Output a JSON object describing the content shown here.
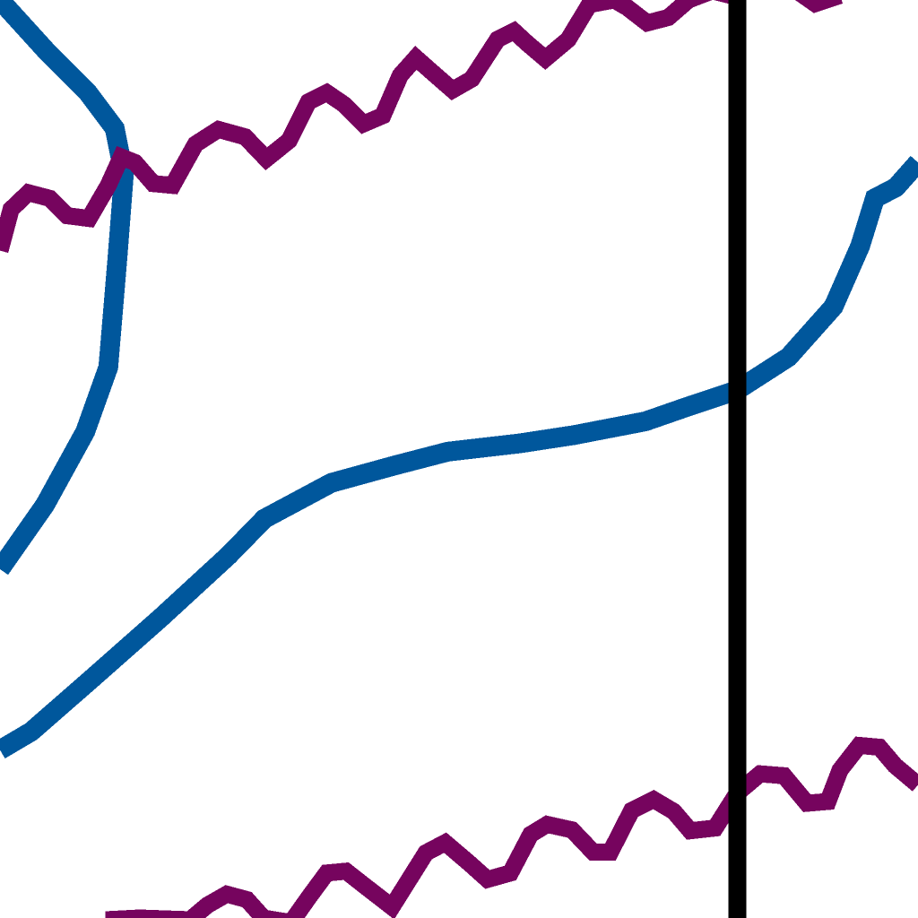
{
  "chart_data": {
    "type": "line",
    "title": "",
    "xlabel": "",
    "ylabel": "",
    "xlim": [
      0,
      100
    ],
    "ylim": [
      0,
      100
    ],
    "grid": false,
    "legend": "none",
    "colors": {
      "blue": "#00579c",
      "purple": "#76045e",
      "marker_line": "#000000",
      "background": "#ffffff"
    },
    "vertical_marker": {
      "x": 80.3
    },
    "series": [
      {
        "color": "#00579c",
        "x": [
          0,
          5,
          9.5,
          12.5,
          13.5,
          12.8,
          11.8,
          9.3,
          4.9,
          0
        ],
        "y": [
          100,
          94.5,
          90,
          86,
          81,
          72,
          60,
          53,
          45,
          38
        ]
      },
      {
        "color": "#00579c",
        "x": [
          0,
          3.4,
          9.8,
          17.5,
          24.9,
          28.8,
          36.1,
          43,
          48.8,
          56.6,
          62.5,
          70.3,
          75.2,
          80.3,
          85.9,
          90.8,
          93.7,
          95.3,
          97.6,
          100
        ],
        "y": [
          18.3,
          20.3,
          25.9,
          32.7,
          39.5,
          43.5,
          47.4,
          49.3,
          50.8,
          51.7,
          52.6,
          54.1,
          55.8,
          57.5,
          61.1,
          66.6,
          73.2,
          78.4,
          79.6,
          82.3
        ]
      },
      {
        "color": "#76045e",
        "x": [
          0,
          1.2,
          3.1,
          5.4,
          7.3,
          9.7,
          11.8,
          13.2,
          14.7,
          16.7,
          18.8,
          21.3,
          23.8,
          26.7,
          29,
          31.5,
          33.6,
          35.6,
          37.5,
          39.6,
          41.7,
          43.6,
          45.3,
          47,
          49.3,
          51.4,
          54.2,
          56,
          57.4,
          59.4,
          61.9,
          64.2,
          66.9,
          68.3,
          70.5,
          72.8,
          75,
          77.6,
          80.3
        ],
        "y": [
          72.7,
          77.2,
          79,
          78.4,
          76.5,
          76.2,
          79.8,
          82.9,
          82.3,
          80,
          79.8,
          84.3,
          85.9,
          85.1,
          82.7,
          84.7,
          88.9,
          89.9,
          88.6,
          86.5,
          87.4,
          91.8,
          93.7,
          92.2,
          90.2,
          91.4,
          95.7,
          96.6,
          95.3,
          93.6,
          95.7,
          99.5,
          100,
          99.2,
          97.5,
          98.1,
          100,
          101,
          100.3
        ]
      },
      {
        "color": "#76045e",
        "x": [
          86.8,
          88.8,
          91.5
        ],
        "y": [
          101,
          99.6,
          100.5
        ]
      },
      {
        "color": "#76045e",
        "x": [
          11.5,
          15.2,
          20.7,
          22.6,
          24.7,
          26.9,
          28.7,
          31.7,
          33.6,
          35.6,
          37.7,
          39.6,
          42.7,
          46.4,
          48.5,
          51.2,
          53.1,
          55.6,
          57.8,
          59.6,
          62.3,
          64.6,
          66.5,
          68.8,
          71.2,
          73.4,
          75.2,
          77.9,
          80.3,
          82.8,
          85.4,
          87.9,
          90.2,
          91.5,
          93.6,
          95.8,
          97.5,
          100
        ],
        "y": [
          -0.2,
          0,
          -0.2,
          1.4,
          2.6,
          2,
          0,
          -0.5,
          2.2,
          4.9,
          5.1,
          3.6,
          1.2,
          7.1,
          8.2,
          5.9,
          4.2,
          4.9,
          9.1,
          10.2,
          9.6,
          7.2,
          7.2,
          11.7,
          12.9,
          11.6,
          9.5,
          9.8,
          13.6,
          15.7,
          15.5,
          12.5,
          12.7,
          16.1,
          18.8,
          18.6,
          16.6,
          14.5
        ]
      }
    ]
  }
}
